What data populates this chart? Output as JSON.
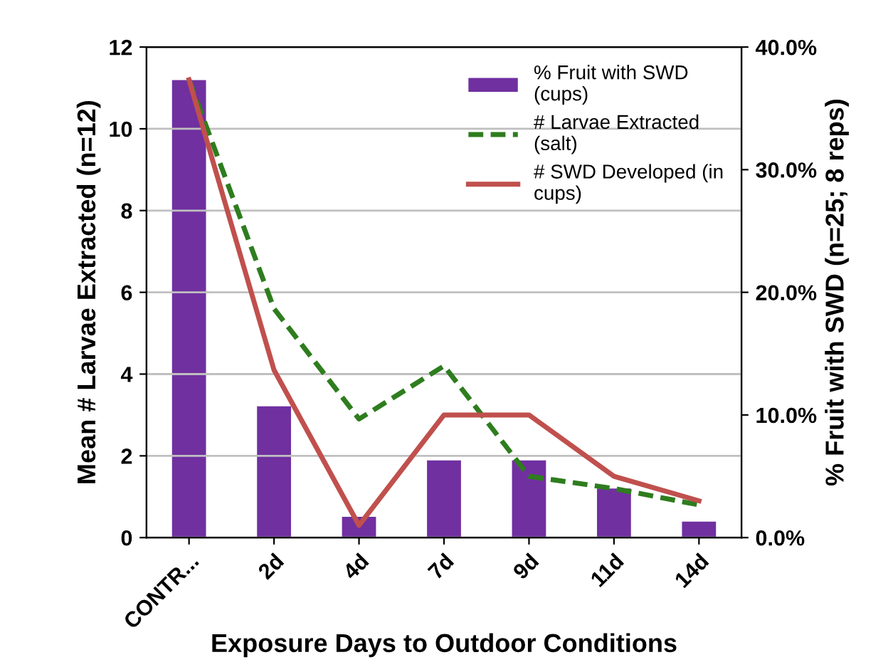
{
  "chart_data": {
    "type": "bar",
    "xlabel": "Exposure Days to Outdoor Conditions",
    "ylabel": "Mean # Larvae Extracted (n=12)",
    "y2label": "% Fruit with SWD (n=25; 8 reps)",
    "categories": [
      "CONTR...",
      "2d",
      "4d",
      "7d",
      "9d",
      "11d",
      "14d"
    ],
    "series": [
      {
        "name": "% Fruit with SWD\n(cups)",
        "axis": "y2",
        "color": "#7030a0",
        "values": [
          37.3,
          10.7,
          1.7,
          6.3,
          6.3,
          4.0,
          1.3
        ]
      },
      {
        "name": "# Larvae Extracted\n(salt)",
        "type": "line",
        "line_style": "dashed",
        "color": "#2e7d1e",
        "values": [
          11.2,
          5.6,
          2.9,
          4.2,
          1.5,
          1.2,
          0.8
        ]
      },
      {
        "name": "# SWD Developed (in\ncups)",
        "type": "line",
        "line_style": "solid",
        "color": "#c0504d",
        "values": [
          11.2,
          4.1,
          0.3,
          3.0,
          3.0,
          1.5,
          0.9
        ]
      }
    ],
    "ylim": [
      0,
      12
    ],
    "yticks": [
      0,
      2,
      4,
      6,
      8,
      10,
      12
    ],
    "y2lim": [
      0,
      40
    ],
    "y2ticks": [
      {
        "value": 0,
        "label": "0.0%"
      },
      {
        "value": 10,
        "label": "10.0%"
      },
      {
        "value": 20,
        "label": "20.0%"
      },
      {
        "value": 30,
        "label": "30.0%"
      },
      {
        "value": 40,
        "label": "40.0%"
      }
    ],
    "grid": "y",
    "legend": "top right",
    "marker": "none"
  }
}
